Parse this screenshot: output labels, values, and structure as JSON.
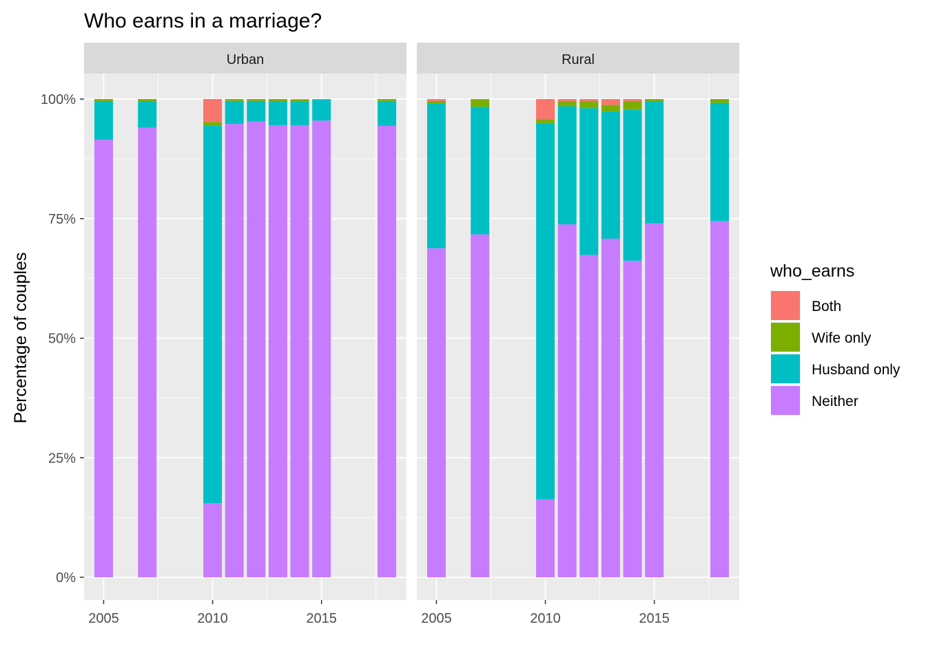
{
  "chart_data": {
    "type": "bar",
    "stacked": true,
    "title": "Who earns in a marriage?",
    "xlabel": "",
    "ylabel": "Percentage of couples",
    "ylim": [
      0,
      1
    ],
    "y_ticks": [
      0,
      0.25,
      0.5,
      0.75,
      1.0
    ],
    "y_tick_labels": [
      "0%",
      "25%",
      "50%",
      "75%",
      "100%"
    ],
    "x_range": [
      2004.1,
      2018.9
    ],
    "x_ticks": [
      2005,
      2010,
      2015
    ],
    "x_tick_labels": [
      "2005",
      "2010",
      "2015"
    ],
    "grid": true,
    "legend": {
      "title": "who_earns",
      "position": "right",
      "entries": [
        "Both",
        "Wife only",
        "Husband only",
        "Neither"
      ]
    },
    "stack_order_bottom_to_top": [
      "Neither",
      "Husband only",
      "Wife only",
      "Both"
    ],
    "colors": {
      "Both": "#F8766D",
      "Wife only": "#7CAE00",
      "Husband only": "#00BFC4",
      "Neither": "#C77CFF"
    },
    "facets": [
      {
        "name": "Urban",
        "years": [
          2005,
          2007,
          2010,
          2011,
          2012,
          2013,
          2014,
          2015,
          2018
        ],
        "series": [
          {
            "name": "Neither",
            "values": [
              0.915,
              0.94,
              0.155,
              0.948,
              0.953,
              0.945,
              0.945,
              0.955,
              0.944
            ]
          },
          {
            "name": "Husband only",
            "values": [
              0.08,
              0.055,
              0.79,
              0.048,
              0.043,
              0.05,
              0.05,
              0.044,
              0.052
            ]
          },
          {
            "name": "Wife only",
            "values": [
              0.005,
              0.005,
              0.007,
              0.004,
              0.004,
              0.005,
              0.004,
              0.001,
              0.004
            ]
          },
          {
            "name": "Both",
            "values": [
              0,
              0,
              0.048,
              0,
              0,
              0,
              0.001,
              0,
              0
            ]
          }
        ]
      },
      {
        "name": "Rural",
        "years": [
          2005,
          2007,
          2010,
          2011,
          2012,
          2013,
          2014,
          2015,
          2018
        ],
        "series": [
          {
            "name": "Neither",
            "values": [
              0.688,
              0.717,
              0.163,
              0.738,
              0.674,
              0.708,
              0.662,
              0.74,
              0.745
            ]
          },
          {
            "name": "Husband only",
            "values": [
              0.302,
              0.267,
              0.787,
              0.247,
              0.307,
              0.266,
              0.316,
              0.255,
              0.247
            ]
          },
          {
            "name": "Wife only",
            "values": [
              0.006,
              0.016,
              0.008,
              0.01,
              0.014,
              0.014,
              0.017,
              0.005,
              0.008
            ]
          },
          {
            "name": "Both",
            "values": [
              0.004,
              0,
              0.042,
              0.005,
              0.005,
              0.012,
              0.005,
              0,
              0
            ]
          }
        ]
      }
    ]
  }
}
